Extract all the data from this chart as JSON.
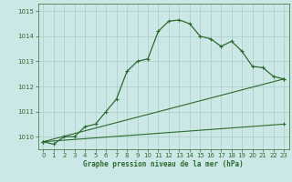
{
  "xlabel": "Graphe pression niveau de la mer (hPa)",
  "bg_color": "#cce8e6",
  "grid_color": "#aaccca",
  "line_color": "#2d6a2d",
  "ylim": [
    1009.5,
    1015.3
  ],
  "xlim": [
    -0.5,
    23.5
  ],
  "yticks": [
    1010,
    1011,
    1012,
    1013,
    1014,
    1015
  ],
  "xticks": [
    0,
    1,
    2,
    3,
    4,
    5,
    6,
    7,
    8,
    9,
    10,
    11,
    12,
    13,
    14,
    15,
    16,
    17,
    18,
    19,
    20,
    21,
    22,
    23
  ],
  "curve1_x": [
    0,
    1,
    2,
    3,
    4,
    5,
    6,
    7,
    8,
    9,
    10,
    11,
    12,
    13,
    14,
    15,
    16,
    17,
    18,
    19,
    20,
    21,
    22,
    23
  ],
  "curve1_y": [
    1009.8,
    1009.7,
    1010.0,
    1010.0,
    1010.4,
    1010.5,
    1011.0,
    1011.5,
    1012.6,
    1013.0,
    1013.1,
    1014.2,
    1014.6,
    1014.65,
    1014.5,
    1014.0,
    1013.9,
    1013.6,
    1013.8,
    1013.4,
    1012.8,
    1012.75,
    1012.4,
    1012.3
  ],
  "curve2_x": [
    0,
    23
  ],
  "curve2_y": [
    1009.8,
    1012.3
  ],
  "curve3_x": [
    0,
    23
  ],
  "curve3_y": [
    1009.8,
    1010.5
  ]
}
